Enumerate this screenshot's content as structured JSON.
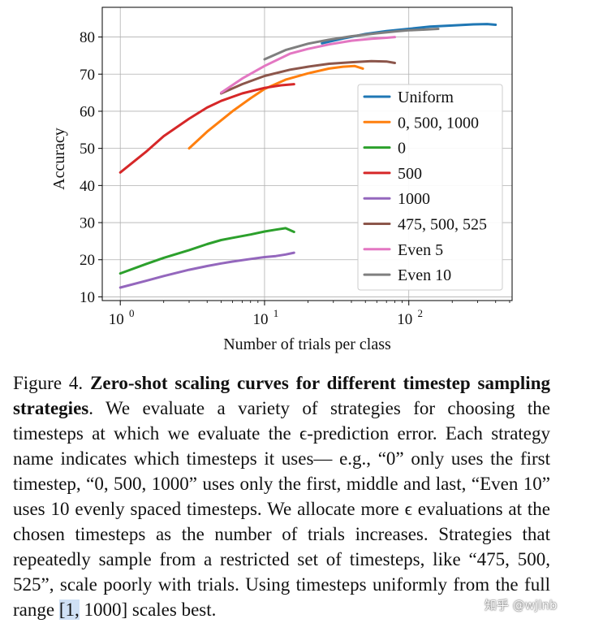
{
  "chart_data": {
    "type": "line",
    "xscale": "log",
    "xlabel": "Number of trials per class",
    "ylabel": "Accuracy",
    "xlim": [
      0.75,
      520
    ],
    "ylim": [
      9,
      88
    ],
    "grid": true,
    "legend_position": "center-right",
    "xtick_values": [
      1,
      10,
      100
    ],
    "xtick_labels": [
      {
        "base": "10",
        "exp": "0"
      },
      {
        "base": "10",
        "exp": "1"
      },
      {
        "base": "10",
        "exp": "2"
      }
    ],
    "yticks": [
      10,
      20,
      30,
      40,
      50,
      60,
      70,
      80
    ],
    "series": [
      {
        "name": "Uniform",
        "color": "#1f77b4",
        "x": [
          25,
          35,
          50,
          70,
          100,
          140,
          200,
          280,
          350,
          400
        ],
        "y": [
          78.3,
          79.6,
          80.8,
          81.6,
          82.2,
          82.8,
          83.1,
          83.4,
          83.5,
          83.3
        ]
      },
      {
        "name": "0, 500, 1000",
        "color": "#ff7f0e",
        "x": [
          3,
          4,
          6,
          8,
          10,
          14,
          20,
          28,
          35,
          42,
          48
        ],
        "y": [
          50,
          54.5,
          60,
          63.5,
          66,
          68.5,
          70.2,
          71.5,
          72,
          72.2,
          71.5
        ]
      },
      {
        "name": "0",
        "color": "#2ca02c",
        "x": [
          1,
          1.5,
          2,
          3,
          4,
          5,
          6,
          8,
          10,
          12,
          14,
          16
        ],
        "y": [
          16.3,
          18.8,
          20.5,
          22.6,
          24.2,
          25.3,
          25.9,
          26.8,
          27.6,
          28.1,
          28.5,
          27.5
        ]
      },
      {
        "name": "500",
        "color": "#d62728",
        "x": [
          1,
          1.5,
          2,
          3,
          4,
          5,
          7,
          10,
          13,
          16
        ],
        "y": [
          43.5,
          49,
          53.3,
          58,
          61,
          62.8,
          64.8,
          66.3,
          67,
          67.3
        ]
      },
      {
        "name": "1000",
        "color": "#9467bd",
        "x": [
          1,
          1.5,
          2,
          3,
          4,
          5,
          6,
          8,
          10,
          12,
          14,
          16
        ],
        "y": [
          12.5,
          14.3,
          15.6,
          17.3,
          18.3,
          19,
          19.5,
          20.2,
          20.7,
          21,
          21.4,
          21.9
        ]
      },
      {
        "name": "475, 500, 525",
        "color": "#8c564b",
        "x": [
          5,
          7,
          10,
          15,
          20,
          28,
          40,
          55,
          70,
          80
        ],
        "y": [
          64.8,
          67.3,
          69.5,
          71.2,
          72,
          72.8,
          73.2,
          73.5,
          73.4,
          73
        ]
      },
      {
        "name": "Even 5",
        "color": "#e377c2",
        "x": [
          5,
          7,
          10,
          15,
          20,
          28,
          40,
          55,
          70,
          80
        ],
        "y": [
          65,
          68.8,
          72.2,
          75.5,
          76.8,
          78,
          79,
          79.5,
          79.8,
          80
        ]
      },
      {
        "name": "Even 10",
        "color": "#7f7f7f",
        "x": [
          10,
          14,
          20,
          28,
          40,
          60,
          80,
          100,
          130,
          160
        ],
        "y": [
          74,
          76.5,
          78.2,
          79.3,
          80.2,
          81,
          81.5,
          81.8,
          82,
          82.2
        ]
      }
    ]
  },
  "caption": {
    "label": "Figure 4.",
    "title": "Zero-shot scaling curves for different timestep sampling strategies",
    "body_1": ". We evaluate a variety of strategies for choosing the timesteps at which we evaluate the ϵ-prediction error. Each strategy name indicates which timesteps it uses— e.g., “0” only uses the first timestep, “0, 500, 1000” uses only the first, middle and last, “Even 10” uses 10 evenly spaced timesteps. We allocate more ϵ evaluations at the chosen timesteps as the number of trials increases. Strategies that repeatedly sample from a restricted set of timesteps, like “475, 500, 525”, scale poorly with trials. Using timesteps uniformly from the full range ",
    "highlight": "[1,",
    "body_2": " 1000] scales best."
  },
  "watermark": "知乎 @wjlnb"
}
